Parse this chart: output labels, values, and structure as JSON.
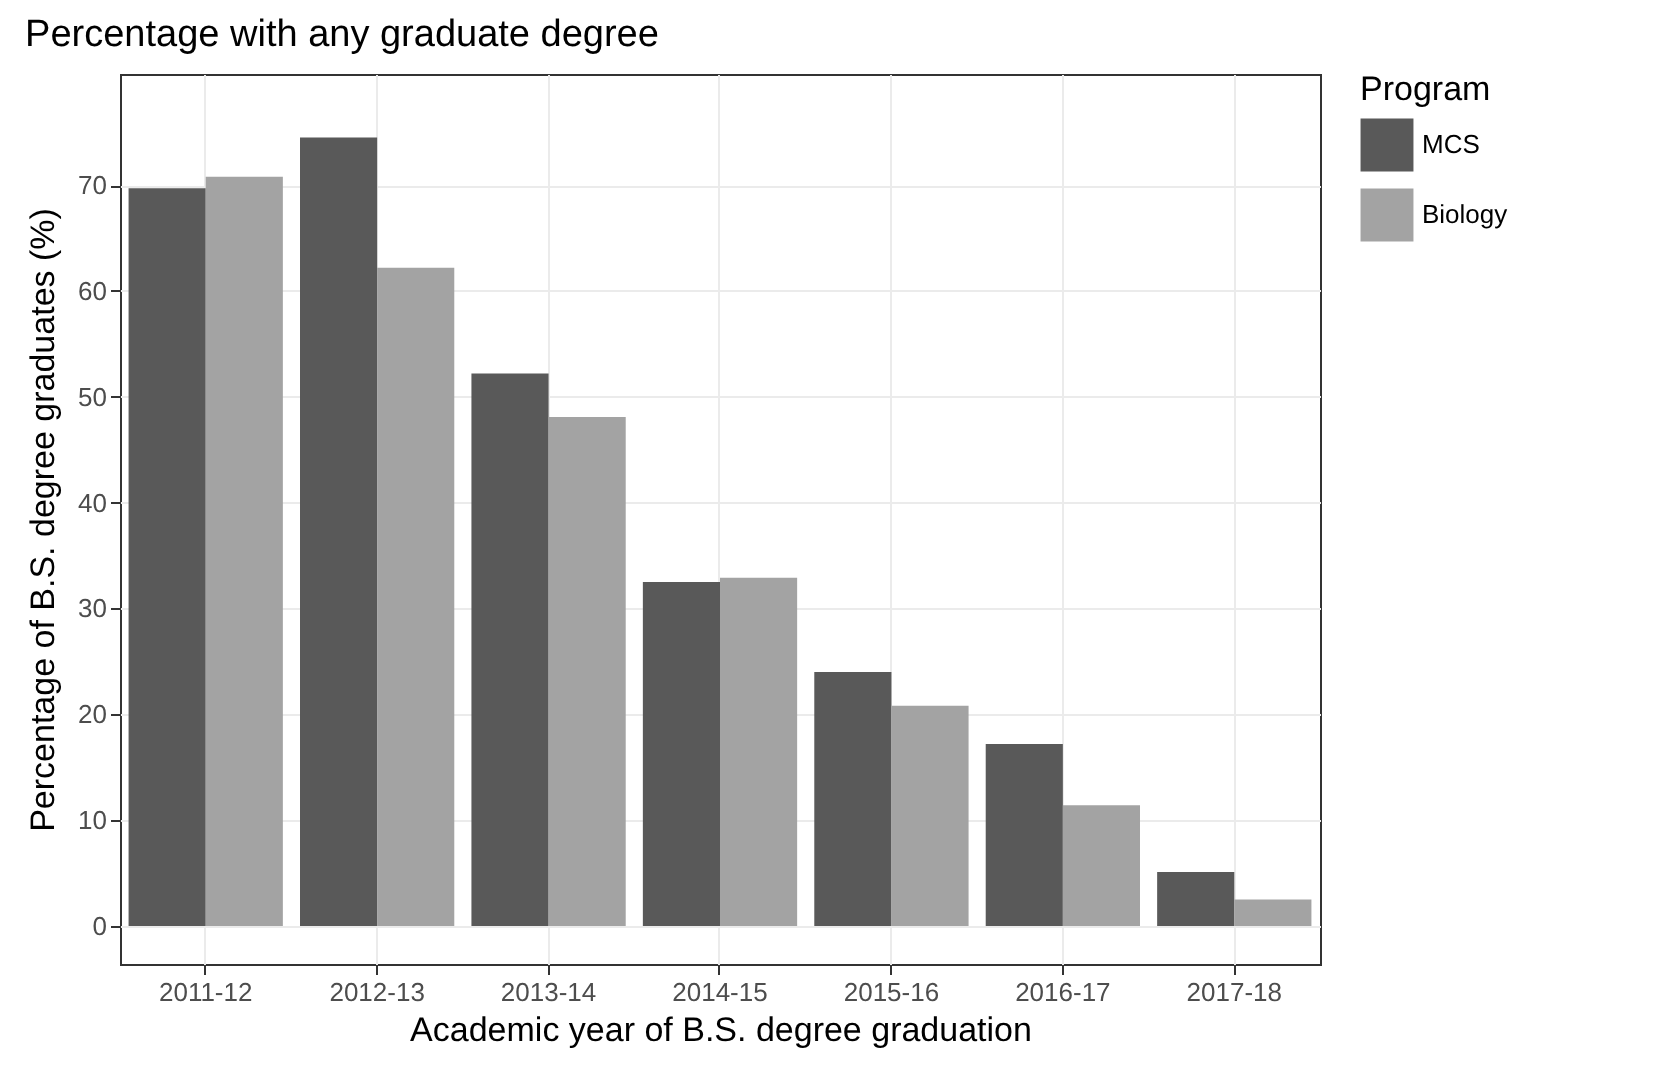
{
  "chart_data": {
    "type": "bar",
    "title": "Percentage with any graduate degree",
    "xlabel": "Academic year of B.S. degree graduation",
    "ylabel": "Percentage of B.S. degree graduates (%)",
    "legend_title": "Program",
    "categories": [
      "2011-12",
      "2012-13",
      "2013-14",
      "2014-15",
      "2015-16",
      "2016-17",
      "2017-18"
    ],
    "series": [
      {
        "name": "MCS",
        "color": "#595959",
        "values": [
          69.7,
          74.5,
          52.2,
          32.5,
          24.0,
          17.2,
          5.1
        ]
      },
      {
        "name": "Biology",
        "color": "#a3a3a3",
        "values": [
          70.8,
          62.2,
          48.1,
          32.9,
          20.8,
          11.4,
          2.5
        ]
      }
    ],
    "ylim": [
      -3.6,
      80.5
    ],
    "yticks": [
      0,
      10,
      20,
      30,
      40,
      50,
      60,
      70
    ],
    "grid": true,
    "legend": "right"
  }
}
